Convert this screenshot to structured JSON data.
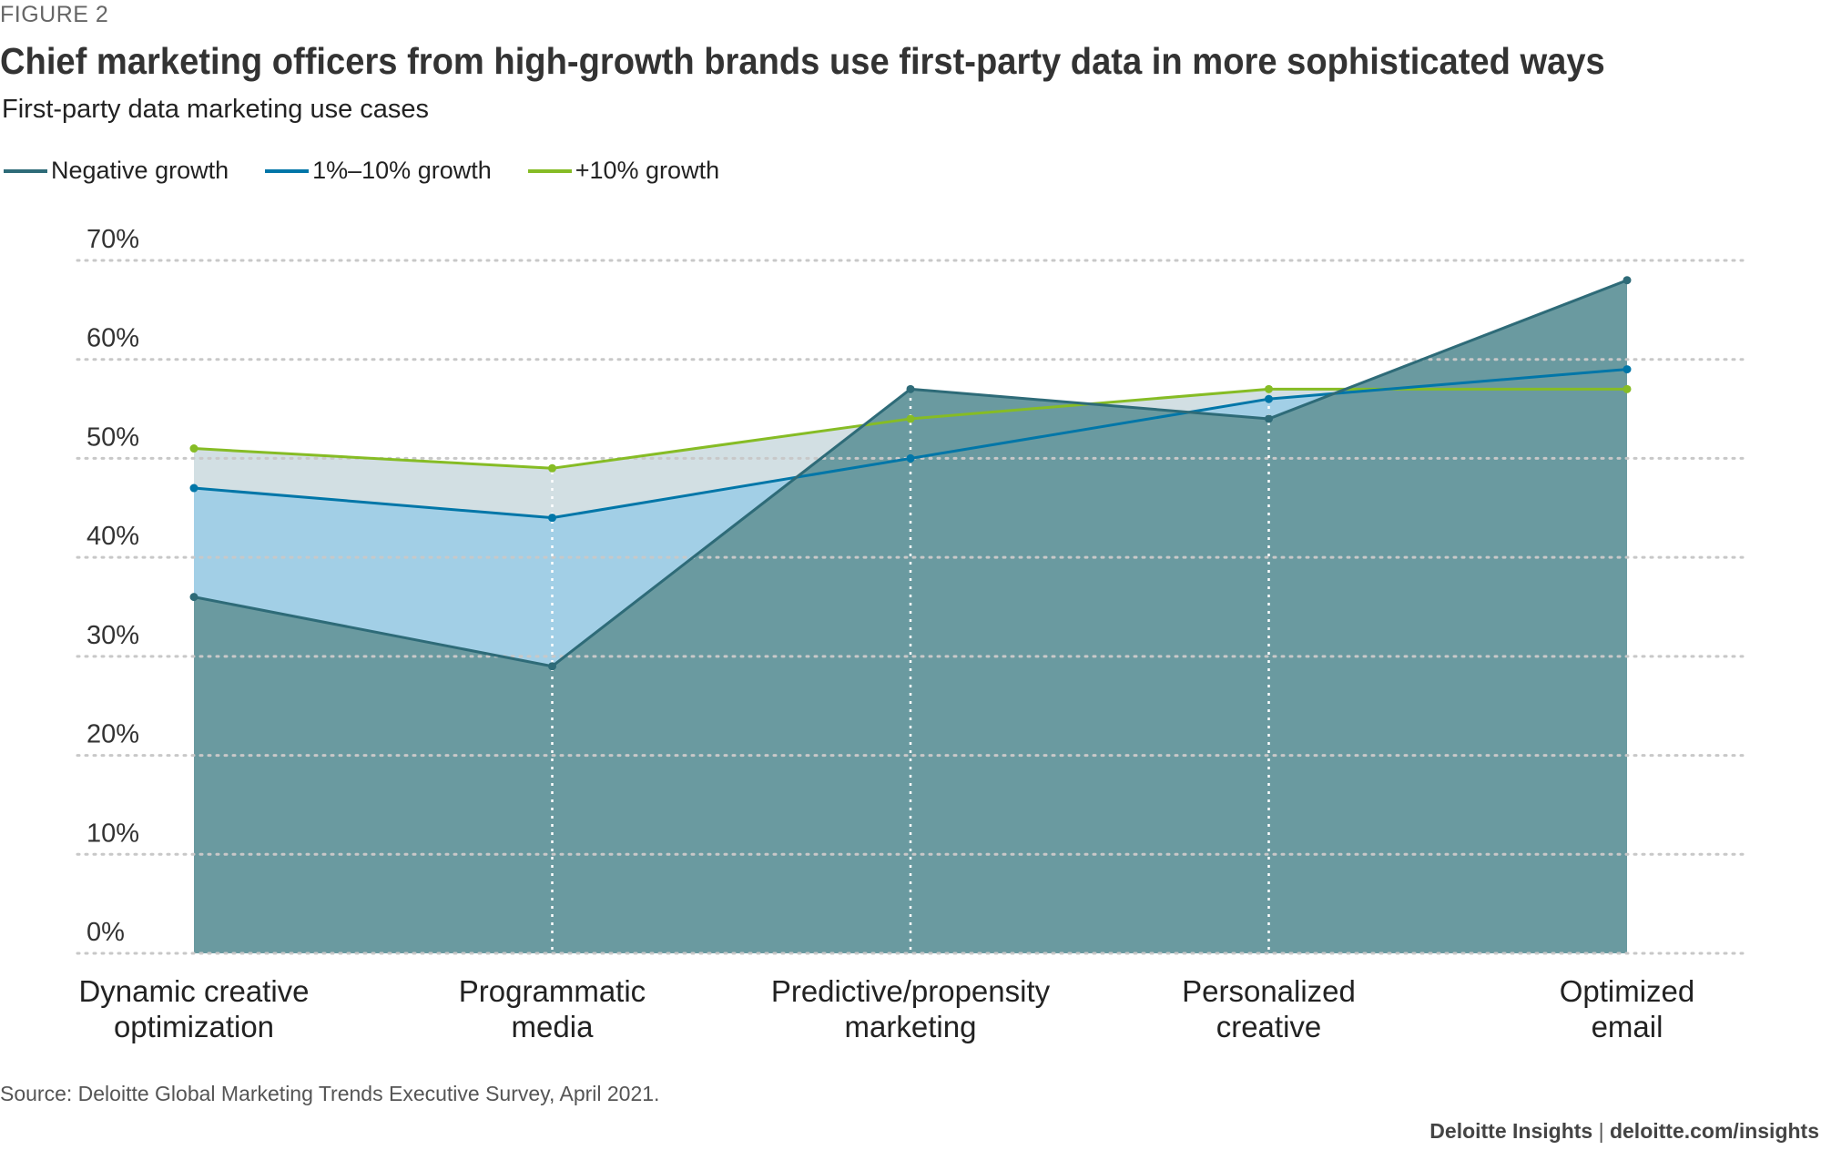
{
  "header": {
    "figure_label": "FIGURE 2",
    "title": "Chief marketing officers from high-growth brands use first-party data in more sophisticated ways",
    "subtitle": "First-party data marketing use cases"
  },
  "footer": {
    "source": "Source: Deloitte Global Marketing Trends Executive Survey, April 2021.",
    "brand": "Deloitte Insights",
    "separator": "|",
    "url": "deloitte.com/insights"
  },
  "colors": {
    "negative_line": "#2e6b78",
    "negative_fill": "#6a9aa0",
    "mid_line": "#0076a8",
    "mid_fill": "#a2cfe6",
    "high_line": "#86bc25",
    "high_fill": "#d2dfe3",
    "grid": "#c8c8c8",
    "axis_text": "#333333"
  },
  "chart_data": {
    "type": "area",
    "categories": [
      [
        "Dynamic creative",
        "optimization"
      ],
      [
        "Programmatic",
        "media"
      ],
      [
        "Predictive/propensity",
        "marketing"
      ],
      [
        "Personalized",
        "creative"
      ],
      [
        "Optimized",
        "email"
      ]
    ],
    "series": [
      {
        "name": "Negative growth",
        "values": [
          36,
          29,
          57,
          54,
          68
        ]
      },
      {
        "name": "1%–10% growth",
        "values": [
          47,
          44,
          50,
          56,
          59
        ]
      },
      {
        "name": "+10% growth",
        "values": [
          51,
          49,
          54,
          57,
          57
        ]
      }
    ],
    "ylim": [
      0,
      70
    ],
    "yticks": [
      "0%",
      "10%",
      "20%",
      "30%",
      "40%",
      "50%",
      "60%",
      "70%"
    ],
    "ytick_values": [
      0,
      10,
      20,
      30,
      40,
      50,
      60,
      70
    ],
    "grid": true,
    "legend_position": "top-left"
  }
}
